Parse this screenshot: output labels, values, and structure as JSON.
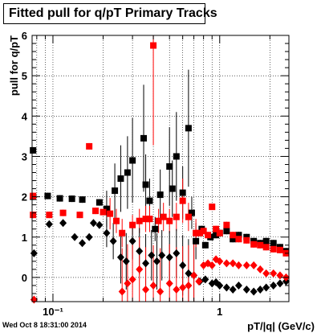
{
  "chart_data": {
    "type": "scatter",
    "title": "Fitted pull for q/pT  Primary Tracks",
    "xlabel": "pT/|q| (GeV/c)",
    "ylabel": "pull for q/pT",
    "x_scale": "log",
    "xlim": [
      0.075,
      2.6
    ],
    "ylim": [
      -0.6,
      6
    ],
    "x_ticks": [
      {
        "value": 0.1,
        "label": "10⁻¹"
      },
      {
        "value": 1,
        "label": "1"
      }
    ],
    "y_ticks": [
      0,
      1,
      2,
      3,
      4,
      5,
      6
    ],
    "grid": true,
    "legend": "none",
    "series": [
      {
        "marker": "square",
        "color": "#000000",
        "points": [
          [
            0.076,
            3.15
          ],
          [
            0.076,
            2.0
          ],
          [
            0.093,
            2.02
          ],
          [
            0.11,
            1.96
          ],
          [
            0.13,
            1.95
          ],
          [
            0.15,
            1.93
          ],
          [
            0.19,
            1.86
          ],
          [
            0.21,
            1.7
          ],
          [
            0.235,
            2.15
          ],
          [
            0.255,
            2.45
          ],
          [
            0.28,
            2.6
          ],
          [
            0.3,
            2.9
          ],
          [
            0.35,
            3.45
          ],
          [
            0.36,
            2.3
          ],
          [
            0.38,
            1.9
          ],
          [
            0.41,
            1.2
          ],
          [
            0.44,
            2.05
          ],
          [
            0.5,
            2.75
          ],
          [
            0.52,
            2.2
          ],
          [
            0.55,
            3.0
          ],
          [
            0.6,
            2.1
          ],
          [
            0.65,
            3.7
          ],
          [
            0.68,
            1.6
          ],
          [
            0.72,
            0.9
          ],
          [
            0.78,
            1.2
          ],
          [
            0.82,
            0.8
          ],
          [
            0.88,
            1.0
          ],
          [
            0.95,
            1.05
          ],
          [
            1.0,
            1.1
          ],
          [
            1.1,
            1.15
          ],
          [
            1.2,
            0.95
          ],
          [
            1.3,
            1.05
          ],
          [
            1.45,
            1.0
          ],
          [
            1.6,
            0.9
          ],
          [
            1.75,
            0.85
          ],
          [
            1.9,
            0.9
          ],
          [
            2.1,
            0.85
          ],
          [
            2.3,
            0.75
          ],
          [
            2.5,
            0.65
          ]
        ]
      },
      {
        "marker": "square",
        "color": "#ff0000",
        "points": [
          [
            0.076,
            2.02
          ],
          [
            0.076,
            1.55
          ],
          [
            0.095,
            1.55
          ],
          [
            0.115,
            1.6
          ],
          [
            0.145,
            1.55
          ],
          [
            0.165,
            3.25
          ],
          [
            0.18,
            1.65
          ],
          [
            0.2,
            1.62
          ],
          [
            0.22,
            1.58
          ],
          [
            0.24,
            1.4
          ],
          [
            0.26,
            1.1
          ],
          [
            0.3,
            1.3
          ],
          [
            0.33,
            1.4
          ],
          [
            0.36,
            1.45
          ],
          [
            0.38,
            1.45
          ],
          [
            0.4,
            5.75
          ],
          [
            0.43,
            1.4
          ],
          [
            0.46,
            1.5
          ],
          [
            0.5,
            1.4
          ],
          [
            0.55,
            1.5
          ],
          [
            0.6,
            1.9
          ],
          [
            0.65,
            1.5
          ],
          [
            0.72,
            1.1
          ],
          [
            0.76,
            1.1
          ],
          [
            0.8,
            1.15
          ],
          [
            0.85,
            1.05
          ],
          [
            0.9,
            1.75
          ],
          [
            0.95,
            1.2
          ],
          [
            1.0,
            1.1
          ],
          [
            1.1,
            1.3
          ],
          [
            1.2,
            1.05
          ],
          [
            1.3,
            0.95
          ],
          [
            1.45,
            0.92
          ],
          [
            1.6,
            0.82
          ],
          [
            1.75,
            0.8
          ],
          [
            1.9,
            0.75
          ],
          [
            2.1,
            0.7
          ],
          [
            2.3,
            0.68
          ],
          [
            2.5,
            0.6
          ]
        ]
      },
      {
        "marker": "diamond",
        "color": "#000000",
        "points": [
          [
            0.077,
            0.6
          ],
          [
            0.095,
            1.32
          ],
          [
            0.115,
            1.35
          ],
          [
            0.135,
            1.0
          ],
          [
            0.15,
            0.85
          ],
          [
            0.165,
            1.0
          ],
          [
            0.175,
            1.35
          ],
          [
            0.19,
            1.3
          ],
          [
            0.21,
            1.1
          ],
          [
            0.23,
            0.9
          ],
          [
            0.255,
            0.5
          ],
          [
            0.275,
            0.4
          ],
          [
            0.3,
            0.9
          ],
          [
            0.33,
            0.65
          ],
          [
            0.36,
            0.35
          ],
          [
            0.39,
            0.55
          ],
          [
            0.42,
            0.4
          ],
          [
            0.45,
            0.55
          ],
          [
            0.5,
            0.5
          ],
          [
            0.55,
            0.6
          ],
          [
            0.6,
            0.3
          ],
          [
            0.65,
            0.1
          ],
          [
            0.7,
            0.05
          ],
          [
            0.76,
            -0.1
          ],
          [
            0.82,
            -0.05
          ],
          [
            0.9,
            -0.15
          ],
          [
            0.95,
            -0.12
          ],
          [
            1.0,
            -0.2
          ],
          [
            1.1,
            -0.25
          ],
          [
            1.2,
            -0.3
          ],
          [
            1.3,
            -0.2
          ],
          [
            1.45,
            -0.3
          ],
          [
            1.6,
            -0.35
          ],
          [
            1.75,
            -0.3
          ],
          [
            1.9,
            -0.25
          ],
          [
            2.1,
            -0.2
          ],
          [
            2.3,
            -0.15
          ],
          [
            2.5,
            -0.1
          ]
        ]
      },
      {
        "marker": "diamond",
        "color": "#ff0000",
        "points": [
          [
            0.077,
            -0.55
          ],
          [
            0.26,
            -0.35
          ],
          [
            0.28,
            -0.15
          ],
          [
            0.3,
            -0.05
          ],
          [
            0.33,
            0.2
          ],
          [
            0.36,
            -0.3
          ],
          [
            0.4,
            -0.2
          ],
          [
            0.44,
            -0.35
          ],
          [
            0.5,
            -0.15
          ],
          [
            0.55,
            -0.3
          ],
          [
            0.6,
            -0.25
          ],
          [
            0.65,
            -0.2
          ],
          [
            0.7,
            0.05
          ],
          [
            0.75,
            -0.1
          ],
          [
            0.8,
            0.3
          ],
          [
            0.85,
            0.35
          ],
          [
            0.9,
            0.3
          ],
          [
            0.95,
            0.45
          ],
          [
            1.0,
            0.4
          ],
          [
            1.1,
            0.35
          ],
          [
            1.2,
            0.35
          ],
          [
            1.3,
            0.3
          ],
          [
            1.45,
            0.3
          ],
          [
            1.6,
            0.3
          ],
          [
            1.75,
            0.2
          ],
          [
            1.9,
            0.1
          ],
          [
            2.1,
            0.1
          ],
          [
            2.3,
            0.05
          ],
          [
            2.5,
            0.0
          ]
        ]
      }
    ]
  },
  "footer": {
    "timestamp": "Wed Oct  8 18:31:00 2014"
  }
}
